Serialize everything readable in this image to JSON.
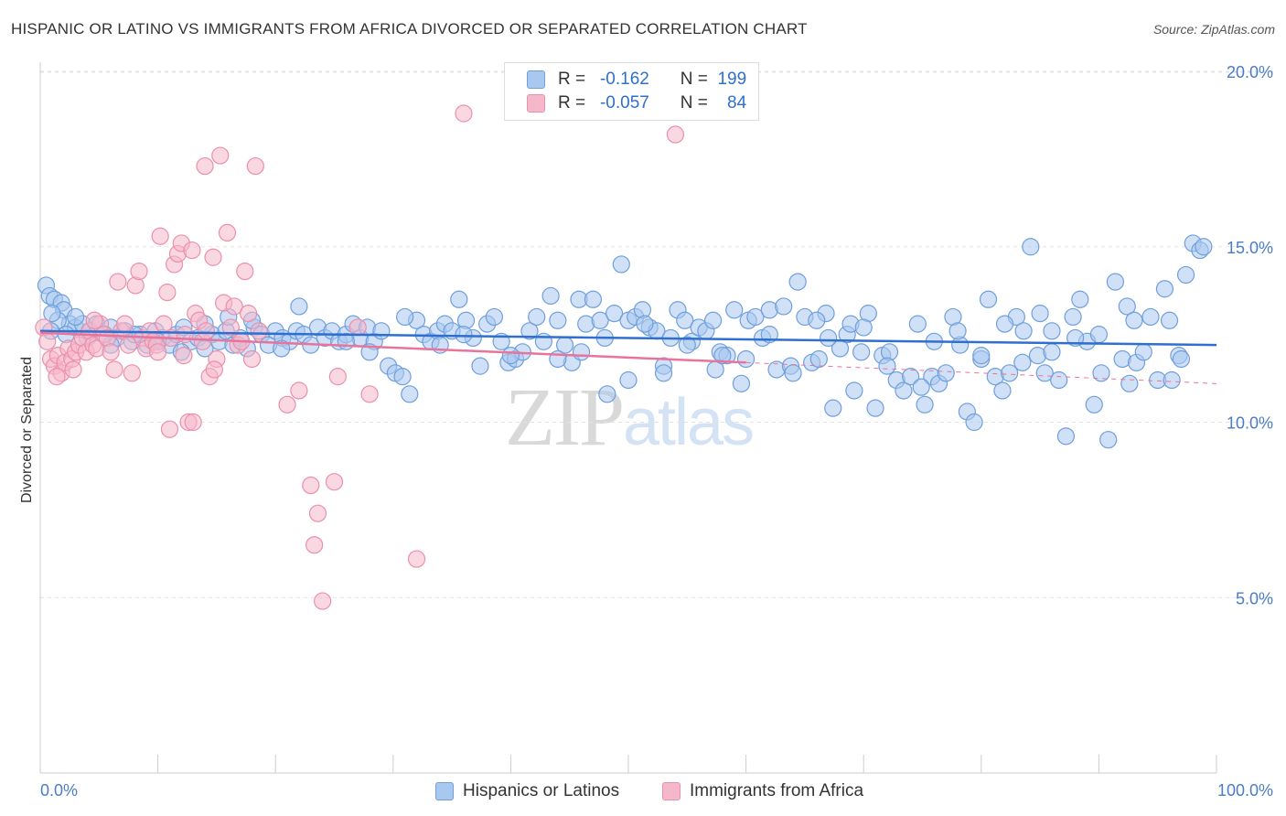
{
  "title": "HISPANIC OR LATINO VS IMMIGRANTS FROM AFRICA DIVORCED OR SEPARATED CORRELATION CHART",
  "source": "Source: ZipAtlas.com",
  "watermark": {
    "zip": "ZIP",
    "atlas": "atlas"
  },
  "legend": {
    "r_label": "R =",
    "n_label": "N =",
    "rows": [
      {
        "r": "-0.162",
        "n": "199"
      },
      {
        "r": "-0.057",
        "n": "84"
      }
    ]
  },
  "colors": {
    "blue_fill": "#a9c8f0",
    "blue_stroke": "#6f9fdc",
    "blue_line": "#2e6fcf",
    "pink_fill": "#f5b8cb",
    "pink_stroke": "#eb8fab",
    "pink_line": "#e8739b",
    "tick_text": "#4a7cc9"
  },
  "chart_data": {
    "type": "scatter",
    "title": "HISPANIC OR LATINO VS IMMIGRANTS FROM AFRICA DIVORCED OR SEPARATED CORRELATION CHART",
    "xlabel": "",
    "ylabel": "Divorced or Separated",
    "xlim": [
      0,
      100
    ],
    "ylim": [
      0,
      20.5
    ],
    "x_tick_labels": [
      "0.0%",
      "100.0%"
    ],
    "y_ticks": [
      5,
      10,
      15,
      20
    ],
    "y_tick_labels": [
      "5.0%",
      "10.0%",
      "15.0%",
      "20.0%"
    ],
    "grid": true,
    "legend_position": "top-center",
    "series": [
      {
        "name": "Hispanics or Latinos",
        "color": "#a9c8f0",
        "r": -0.162,
        "n": 199,
        "trend": {
          "x0": 0,
          "y0": 12.6,
          "x1": 100,
          "y1": 12.2
        },
        "points": [
          [
            0.5,
            13.9
          ],
          [
            0.8,
            13.6
          ],
          [
            1.2,
            13.5
          ],
          [
            1.8,
            13.4
          ],
          [
            2.0,
            13.2
          ],
          [
            2.5,
            12.8
          ],
          [
            3.0,
            12.7
          ],
          [
            3.6,
            12.8
          ],
          [
            4.2,
            12.6
          ],
          [
            4.8,
            12.8
          ],
          [
            5.5,
            12.5
          ],
          [
            6.0,
            12.7
          ],
          [
            6.5,
            12.4
          ],
          [
            7.2,
            12.6
          ],
          [
            7.8,
            12.3
          ],
          [
            8.5,
            12.5
          ],
          [
            9.1,
            12.2
          ],
          [
            9.8,
            12.6
          ],
          [
            10.4,
            12.4
          ],
          [
            11.0,
            12.2
          ],
          [
            11.6,
            12.5
          ],
          [
            12.2,
            12.7
          ],
          [
            12.8,
            12.3
          ],
          [
            13.4,
            12.4
          ],
          [
            14.0,
            12.1
          ],
          [
            14.6,
            12.5
          ],
          [
            15.2,
            12.3
          ],
          [
            15.8,
            12.6
          ],
          [
            16.4,
            12.2
          ],
          [
            17.0,
            12.4
          ],
          [
            17.6,
            12.1
          ],
          [
            18.2,
            12.7
          ],
          [
            18.8,
            12.5
          ],
          [
            19.4,
            12.2
          ],
          [
            20.0,
            12.6
          ],
          [
            20.6,
            12.4
          ],
          [
            21.2,
            12.3
          ],
          [
            21.8,
            12.6
          ],
          [
            22.4,
            12.5
          ],
          [
            23.0,
            12.2
          ],
          [
            23.6,
            12.7
          ],
          [
            24.2,
            12.4
          ],
          [
            24.8,
            12.6
          ],
          [
            25.4,
            12.3
          ],
          [
            26.0,
            12.5
          ],
          [
            26.6,
            12.8
          ],
          [
            27.2,
            12.4
          ],
          [
            27.8,
            12.7
          ],
          [
            28.4,
            12.3
          ],
          [
            29.0,
            12.6
          ],
          [
            29.6,
            11.6
          ],
          [
            30.2,
            11.4
          ],
          [
            30.8,
            11.3
          ],
          [
            31.4,
            10.8
          ],
          [
            32.0,
            12.9
          ],
          [
            32.6,
            12.5
          ],
          [
            33.2,
            12.3
          ],
          [
            33.8,
            12.6
          ],
          [
            34.4,
            12.8
          ],
          [
            35.0,
            12.6
          ],
          [
            35.6,
            13.5
          ],
          [
            36.2,
            12.9
          ],
          [
            36.8,
            12.4
          ],
          [
            37.4,
            11.6
          ],
          [
            38.0,
            12.8
          ],
          [
            38.6,
            13.0
          ],
          [
            39.2,
            12.3
          ],
          [
            39.8,
            11.7
          ],
          [
            40.4,
            11.8
          ],
          [
            41.0,
            12.0
          ],
          [
            41.6,
            12.6
          ],
          [
            42.2,
            13.0
          ],
          [
            42.8,
            12.3
          ],
          [
            43.4,
            13.6
          ],
          [
            44.0,
            12.9
          ],
          [
            44.6,
            12.2
          ],
          [
            45.2,
            11.7
          ],
          [
            45.8,
            13.5
          ],
          [
            46.4,
            12.8
          ],
          [
            47.0,
            13.5
          ],
          [
            47.6,
            12.9
          ],
          [
            48.2,
            10.8
          ],
          [
            48.8,
            13.1
          ],
          [
            49.4,
            14.5
          ],
          [
            50.0,
            12.9
          ],
          [
            50.6,
            13.0
          ],
          [
            51.2,
            13.2
          ],
          [
            51.8,
            12.7
          ],
          [
            52.4,
            12.6
          ],
          [
            53.0,
            11.6
          ],
          [
            53.6,
            12.4
          ],
          [
            54.2,
            13.2
          ],
          [
            54.8,
            12.9
          ],
          [
            55.4,
            12.3
          ],
          [
            56.0,
            12.7
          ],
          [
            56.6,
            12.6
          ],
          [
            57.2,
            12.9
          ],
          [
            57.8,
            12.0
          ],
          [
            58.4,
            11.9
          ],
          [
            59.0,
            13.2
          ],
          [
            59.6,
            11.1
          ],
          [
            60.2,
            12.9
          ],
          [
            60.8,
            13.0
          ],
          [
            61.4,
            12.4
          ],
          [
            62.0,
            13.2
          ],
          [
            62.6,
            11.5
          ],
          [
            63.2,
            13.3
          ],
          [
            63.8,
            11.6
          ],
          [
            64.4,
            14.0
          ],
          [
            65.0,
            13.0
          ],
          [
            65.6,
            11.7
          ],
          [
            66.2,
            11.8
          ],
          [
            66.8,
            13.1
          ],
          [
            67.4,
            10.4
          ],
          [
            68.0,
            12.1
          ],
          [
            68.6,
            12.5
          ],
          [
            69.2,
            10.9
          ],
          [
            69.8,
            12.0
          ],
          [
            70.4,
            13.1
          ],
          [
            71.0,
            10.4
          ],
          [
            71.6,
            11.9
          ],
          [
            72.2,
            12.0
          ],
          [
            72.8,
            11.2
          ],
          [
            73.4,
            10.9
          ],
          [
            74.0,
            11.3
          ],
          [
            74.6,
            12.8
          ],
          [
            75.2,
            10.5
          ],
          [
            75.8,
            11.3
          ],
          [
            76.4,
            11.1
          ],
          [
            77.0,
            11.4
          ],
          [
            77.6,
            13.0
          ],
          [
            78.2,
            12.2
          ],
          [
            78.8,
            10.3
          ],
          [
            79.4,
            10.0
          ],
          [
            80.0,
            11.8
          ],
          [
            80.6,
            13.5
          ],
          [
            81.2,
            11.3
          ],
          [
            81.8,
            10.9
          ],
          [
            82.4,
            11.4
          ],
          [
            83.0,
            13.0
          ],
          [
            83.6,
            12.6
          ],
          [
            84.2,
            15.0
          ],
          [
            84.8,
            11.9
          ],
          [
            85.4,
            11.4
          ],
          [
            86.0,
            12.6
          ],
          [
            86.6,
            11.2
          ],
          [
            87.2,
            9.6
          ],
          [
            87.8,
            13.0
          ],
          [
            88.4,
            13.5
          ],
          [
            89.0,
            12.3
          ],
          [
            89.6,
            10.5
          ],
          [
            90.2,
            11.4
          ],
          [
            90.8,
            9.5
          ],
          [
            91.4,
            14.0
          ],
          [
            92.0,
            11.8
          ],
          [
            92.6,
            11.1
          ],
          [
            93.2,
            11.7
          ],
          [
            93.8,
            12.0
          ],
          [
            94.4,
            13.0
          ],
          [
            95.0,
            11.2
          ],
          [
            95.6,
            13.8
          ],
          [
            96.2,
            11.2
          ],
          [
            96.8,
            11.9
          ],
          [
            97.4,
            14.2
          ],
          [
            98.0,
            15.1
          ],
          [
            98.6,
            14.9
          ],
          [
            98.9,
            15.0
          ],
          [
            92.4,
            13.3
          ],
          [
            96.0,
            12.9
          ],
          [
            85.0,
            13.1
          ],
          [
            74.9,
            11.0
          ],
          [
            68.9,
            12.8
          ],
          [
            57.4,
            11.5
          ],
          [
            51.4,
            12.8
          ],
          [
            46.0,
            12.0
          ],
          [
            40.0,
            11.9
          ],
          [
            36.0,
            12.5
          ],
          [
            34.0,
            12.2
          ],
          [
            31.0,
            13.0
          ],
          [
            28.0,
            12.0
          ],
          [
            26.0,
            12.3
          ],
          [
            22.0,
            13.3
          ],
          [
            20.5,
            12.1
          ],
          [
            18.0,
            12.9
          ],
          [
            16.0,
            13.0
          ],
          [
            14.0,
            12.8
          ],
          [
            12.0,
            12.0
          ],
          [
            10.0,
            12.3
          ],
          [
            8.0,
            12.5
          ],
          [
            6.0,
            12.2
          ],
          [
            4.0,
            12.4
          ],
          [
            3.0,
            13.0
          ],
          [
            2.2,
            12.5
          ],
          [
            1.5,
            12.9
          ],
          [
            0.9,
            12.6
          ],
          [
            1.0,
            13.1
          ],
          [
            44.0,
            11.8
          ],
          [
            48.0,
            12.4
          ],
          [
            55.0,
            12.2
          ],
          [
            62.0,
            12.5
          ],
          [
            66.0,
            12.9
          ],
          [
            70.0,
            12.7
          ],
          [
            76.0,
            12.3
          ],
          [
            82.0,
            12.8
          ],
          [
            88.0,
            12.4
          ],
          [
            93.0,
            12.9
          ],
          [
            58.0,
            11.9
          ],
          [
            64.0,
            11.4
          ],
          [
            72.0,
            11.6
          ],
          [
            80.0,
            11.9
          ],
          [
            86.0,
            12.0
          ],
          [
            90.0,
            12.5
          ],
          [
            97.0,
            11.8
          ],
          [
            50.0,
            11.2
          ],
          [
            53.0,
            11.4
          ],
          [
            60.0,
            11.8
          ],
          [
            67.0,
            12.4
          ],
          [
            78.0,
            12.6
          ],
          [
            83.5,
            11.7
          ]
        ]
      },
      {
        "name": "Immigrants from Africa",
        "color": "#f5b8cb",
        "r": -0.057,
        "n": 84,
        "trend": {
          "x0": 0,
          "y0": 12.55,
          "x1": 60,
          "y1": 11.7
        },
        "trend_dashed": {
          "x0": 60,
          "y0": 11.7,
          "x1": 100,
          "y1": 11.1
        },
        "points": [
          [
            0.3,
            12.7
          ],
          [
            0.6,
            12.3
          ],
          [
            0.9,
            11.8
          ],
          [
            1.2,
            11.6
          ],
          [
            1.5,
            11.9
          ],
          [
            1.8,
            11.4
          ],
          [
            2.1,
            11.7
          ],
          [
            2.4,
            12.1
          ],
          [
            2.7,
            11.8
          ],
          [
            3.0,
            12.0
          ],
          [
            3.3,
            12.2
          ],
          [
            3.6,
            12.4
          ],
          [
            3.9,
            12.0
          ],
          [
            4.2,
            12.6
          ],
          [
            4.5,
            12.2
          ],
          [
            4.8,
            12.1
          ],
          [
            5.1,
            12.8
          ],
          [
            5.4,
            12.5
          ],
          [
            5.7,
            12.4
          ],
          [
            6.0,
            12.0
          ],
          [
            6.3,
            11.5
          ],
          [
            6.6,
            14.0
          ],
          [
            6.9,
            12.6
          ],
          [
            7.2,
            12.8
          ],
          [
            7.5,
            12.2
          ],
          [
            7.8,
            11.4
          ],
          [
            8.1,
            13.9
          ],
          [
            8.4,
            14.3
          ],
          [
            8.7,
            12.4
          ],
          [
            9.0,
            12.1
          ],
          [
            9.3,
            12.6
          ],
          [
            9.6,
            12.3
          ],
          [
            9.9,
            12.2
          ],
          [
            10.2,
            15.3
          ],
          [
            10.5,
            12.8
          ],
          [
            10.8,
            13.7
          ],
          [
            11.1,
            12.4
          ],
          [
            11.4,
            14.5
          ],
          [
            11.7,
            14.8
          ],
          [
            12.0,
            15.1
          ],
          [
            12.3,
            12.5
          ],
          [
            12.6,
            10.0
          ],
          [
            12.9,
            14.9
          ],
          [
            13.2,
            13.1
          ],
          [
            13.5,
            12.9
          ],
          [
            13.8,
            12.3
          ],
          [
            14.1,
            12.6
          ],
          [
            14.4,
            11.3
          ],
          [
            14.7,
            14.7
          ],
          [
            15.0,
            11.8
          ],
          [
            15.3,
            17.6
          ],
          [
            15.6,
            13.4
          ],
          [
            15.9,
            15.4
          ],
          [
            16.2,
            12.7
          ],
          [
            16.5,
            13.3
          ],
          [
            16.8,
            12.2
          ],
          [
            17.1,
            12.3
          ],
          [
            17.4,
            14.3
          ],
          [
            17.7,
            13.1
          ],
          [
            18.0,
            11.8
          ],
          [
            18.3,
            17.3
          ],
          [
            18.6,
            12.6
          ],
          [
            14.0,
            17.3
          ],
          [
            21.0,
            10.5
          ],
          [
            22.0,
            10.9
          ],
          [
            23.0,
            8.2
          ],
          [
            23.6,
            7.4
          ],
          [
            24.0,
            4.9
          ],
          [
            23.3,
            6.5
          ],
          [
            25.0,
            8.3
          ],
          [
            25.3,
            11.3
          ],
          [
            27.0,
            12.7
          ],
          [
            28.0,
            10.8
          ],
          [
            32.0,
            6.1
          ],
          [
            36.0,
            18.8
          ],
          [
            54.0,
            18.2
          ],
          [
            11.0,
            9.8
          ],
          [
            13.0,
            10.0
          ],
          [
            12.2,
            11.9
          ],
          [
            14.8,
            11.5
          ],
          [
            10.0,
            12.0
          ],
          [
            4.6,
            12.9
          ],
          [
            2.8,
            11.5
          ],
          [
            1.4,
            11.3
          ]
        ]
      }
    ]
  }
}
